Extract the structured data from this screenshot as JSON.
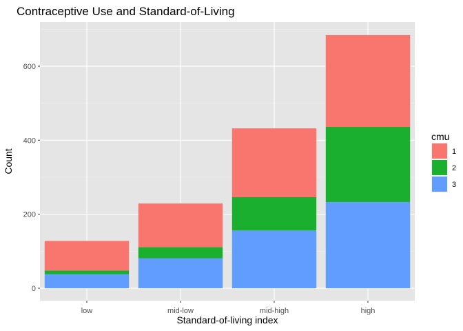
{
  "chart_data": {
    "type": "bar",
    "stacked": true,
    "title": "Contraceptive Use and Standard-of-Living",
    "xlabel": "Standard-of-living index",
    "ylabel": "Count",
    "categories": [
      "low",
      "mid-low",
      "mid-high",
      "high"
    ],
    "series": [
      {
        "name": "3",
        "color": "#619CFF",
        "values": [
          38,
          81,
          156,
          233
        ]
      },
      {
        "name": "2",
        "color": "#1AAF2E",
        "values": [
          10,
          30,
          90,
          203
        ]
      },
      {
        "name": "1",
        "color": "#F8766D",
        "values": [
          80,
          118,
          186,
          248
        ]
      }
    ],
    "ylim": [
      0,
      720
    ],
    "yticks": [
      0,
      200,
      400,
      600
    ],
    "grid": true,
    "legend": {
      "title": "cmu",
      "placement": "right",
      "order": [
        "1",
        "2",
        "3"
      ]
    },
    "colors": {
      "panel_background": "#E5E5E5",
      "grid": "#FFFFFF"
    }
  }
}
